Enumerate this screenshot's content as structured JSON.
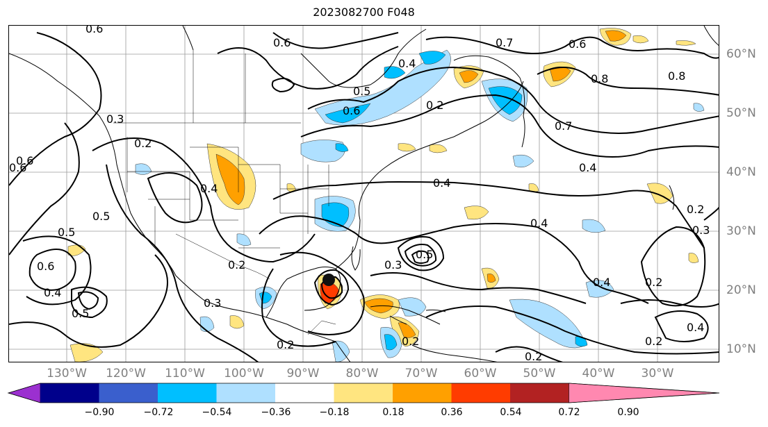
{
  "title": "2023082700 F048",
  "lon_labels": [
    "130°W",
    "120°W",
    "110°W",
    "100°W",
    "90°W",
    "80°W",
    "70°W",
    "60°W",
    "50°W",
    "40°W",
    "30°W"
  ],
  "lat_labels": [
    "60°N",
    "50°N",
    "40°N",
    "30°N",
    "20°N",
    "10°N"
  ],
  "contour_labels": [
    "0.6",
    "0.6",
    "0.6",
    "0.4",
    "0.7",
    "0.6",
    "0.5",
    "0.6",
    "0.2",
    "0.8",
    "0.8",
    "0.7",
    "0.5",
    "0.4",
    "0.2",
    "0.6",
    "0.4",
    "0.4",
    "0.5",
    "0.4",
    "0.5",
    "0.6",
    "0.3",
    "0.2",
    "0.3",
    "0.4",
    "0.3",
    "0.2",
    "0.2",
    "0.2",
    "0.4",
    "0.2",
    "0.4",
    "0.2",
    "0.5",
    "0.3",
    "0.2"
  ],
  "colorbar": {
    "ticks": [
      "−0.90",
      "−0.72",
      "−0.54",
      "−0.36",
      "−0.18",
      "0.18",
      "0.36",
      "0.54",
      "0.72",
      "0.90"
    ],
    "colors": [
      "#9b30d0",
      "#00008b",
      "#3a5fcd",
      "#00bfff",
      "#afe0ff",
      "#ffffff",
      "#ffe580",
      "#ffa000",
      "#ff3c00",
      "#b22222",
      "#ff88b0"
    ]
  }
}
